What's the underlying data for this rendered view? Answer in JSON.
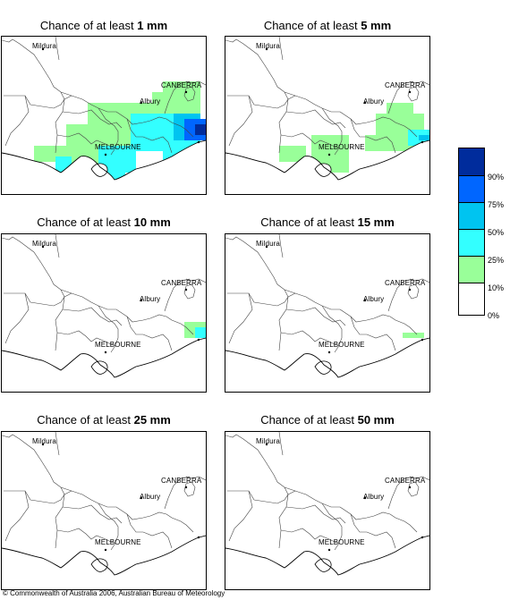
{
  "panels": [
    {
      "prefix": "Chance of at least ",
      "amount": "1 mm"
    },
    {
      "prefix": "Chance of at least ",
      "amount": "5 mm"
    },
    {
      "prefix": "Chance of at least ",
      "amount": "10 mm"
    },
    {
      "prefix": "Chance of at least ",
      "amount": "15 mm"
    },
    {
      "prefix": "Chance of at least ",
      "amount": "25 mm"
    },
    {
      "prefix": "Chance of at least ",
      "amount": "50 mm"
    }
  ],
  "places": {
    "mildura": "Mildura",
    "canberra": "CANBERRA",
    "albury": "Albury",
    "melbourne": "MELBOURNE"
  },
  "legend": {
    "labels": [
      "90%",
      "75%",
      "50%",
      "25%",
      "10%",
      "0%"
    ],
    "colors": [
      "#002c9c",
      "#0066ff",
      "#00c4f0",
      "#33ffff",
      "#99ff99",
      "#ffffff"
    ]
  },
  "copyright": "© Commonwealth of Australia 2006, Australian Bureau of Meteorology"
}
